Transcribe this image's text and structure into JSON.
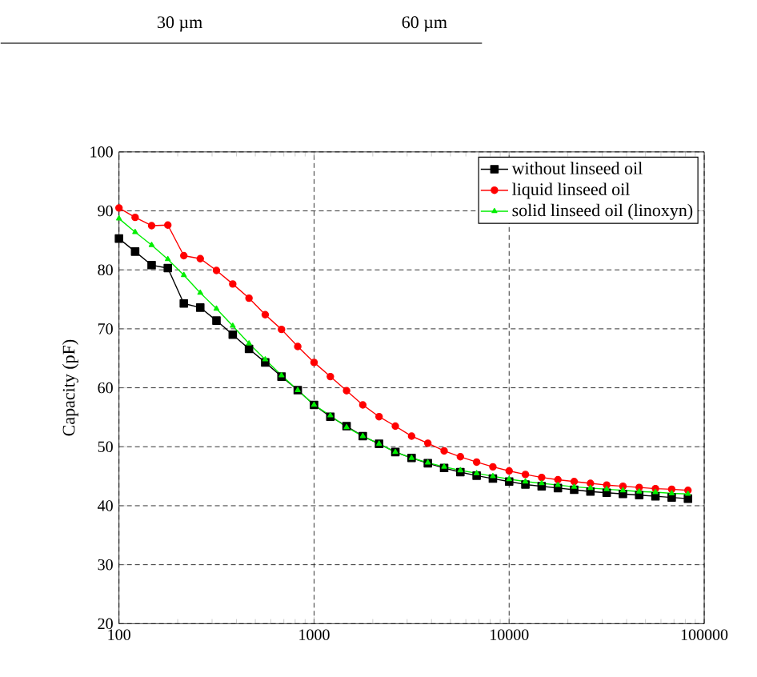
{
  "chart_data": {
    "type": "line",
    "ylabel": "Capacity (pF)",
    "annotations": [
      "30 µm",
      "60 µm"
    ],
    "x": [
      100,
      121,
      147,
      178,
      215,
      261,
      316,
      383,
      464,
      562,
      681,
      825,
      1000,
      1212,
      1468,
      1778,
      2154,
      2610,
      3162,
      3831,
      4642,
      5623,
      6813,
      8254,
      10000,
      12115,
      14678,
      17783,
      21544,
      26102,
      31623,
      38312,
      46416,
      56234,
      68129,
      82540
    ],
    "series": [
      {
        "name": "without linseed oil",
        "color": "#000000",
        "marker": "square",
        "values": [
          85.3,
          83.1,
          80.8,
          80.3,
          74.3,
          73.6,
          71.4,
          69.0,
          66.6,
          64.3,
          61.9,
          59.6,
          57.1,
          55.1,
          53.5,
          51.8,
          50.5,
          49.1,
          48.1,
          47.2,
          46.4,
          45.7,
          45.1,
          44.6,
          44.1,
          43.6,
          43.3,
          43.0,
          42.7,
          42.4,
          42.2,
          42.0,
          41.8,
          41.6,
          41.4,
          41.2
        ]
      },
      {
        "name": "liquid linseed oil",
        "color": "#ff0000",
        "marker": "circle",
        "values": [
          90.5,
          88.9,
          87.5,
          87.6,
          82.4,
          81.9,
          79.9,
          77.6,
          75.2,
          72.4,
          69.9,
          67.0,
          64.3,
          61.9,
          59.5,
          57.1,
          55.1,
          53.5,
          51.8,
          50.6,
          49.3,
          48.3,
          47.4,
          46.6,
          45.9,
          45.3,
          44.8,
          44.4,
          44.1,
          43.8,
          43.5,
          43.3,
          43.1,
          42.9,
          42.8,
          42.6
        ]
      },
      {
        "name": "solid linseed oil (linoxyn)",
        "color": "#00ee00",
        "marker": "triangle",
        "values": [
          88.7,
          86.4,
          84.2,
          81.8,
          79.1,
          76.1,
          73.4,
          70.5,
          67.5,
          64.8,
          62.1,
          59.6,
          57.1,
          55.3,
          53.3,
          51.8,
          50.5,
          49.1,
          48.1,
          47.3,
          46.6,
          46.0,
          45.5,
          45.0,
          44.5,
          44.1,
          43.8,
          43.5,
          43.2,
          43.0,
          42.8,
          42.6,
          42.4,
          42.3,
          42.1,
          42.0
        ]
      }
    ],
    "log": "x",
    "xlim": [
      100,
      100000
    ],
    "xticks": [
      100,
      1000,
      10000,
      100000
    ],
    "ylim": [
      20,
      100
    ],
    "yticks": [
      20,
      30,
      40,
      50,
      60,
      70,
      80,
      90,
      100
    ],
    "grid": true,
    "legend": "top right",
    "line_style": "solid"
  }
}
